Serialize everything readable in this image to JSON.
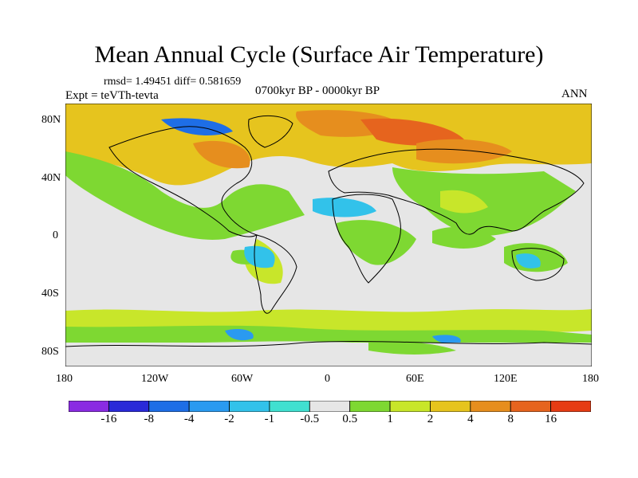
{
  "title": "Mean Annual Cycle (Surface Air Temperature)",
  "stats": "rmsd= 1.49451 diff= 0.581659",
  "experiment": "Expt = teVTh-tevta",
  "period": "0700kyr BP - 0000kyr BP",
  "season": "ANN",
  "map": {
    "lat_labels": [
      "80N",
      "40N",
      "0",
      "40S",
      "80S"
    ],
    "lon_labels": [
      "180",
      "120W",
      "60W",
      "0",
      "60E",
      "120E",
      "180"
    ],
    "background_color": "#e6e6e6"
  },
  "colorbar": {
    "colors": [
      "#8a2be2",
      "#2a2ad8",
      "#1e6ee6",
      "#2a9af0",
      "#32c2ea",
      "#40e0d0",
      "#e6e6e6",
      "#7ed832",
      "#c8e62a",
      "#e6c41e",
      "#e68e1e",
      "#e6641e",
      "#e63c14"
    ],
    "labels": [
      "-16",
      "-8",
      "-4",
      "-2",
      "-1",
      "-0.5",
      "0.5",
      "1",
      "2",
      "4",
      "8",
      "16"
    ]
  }
}
